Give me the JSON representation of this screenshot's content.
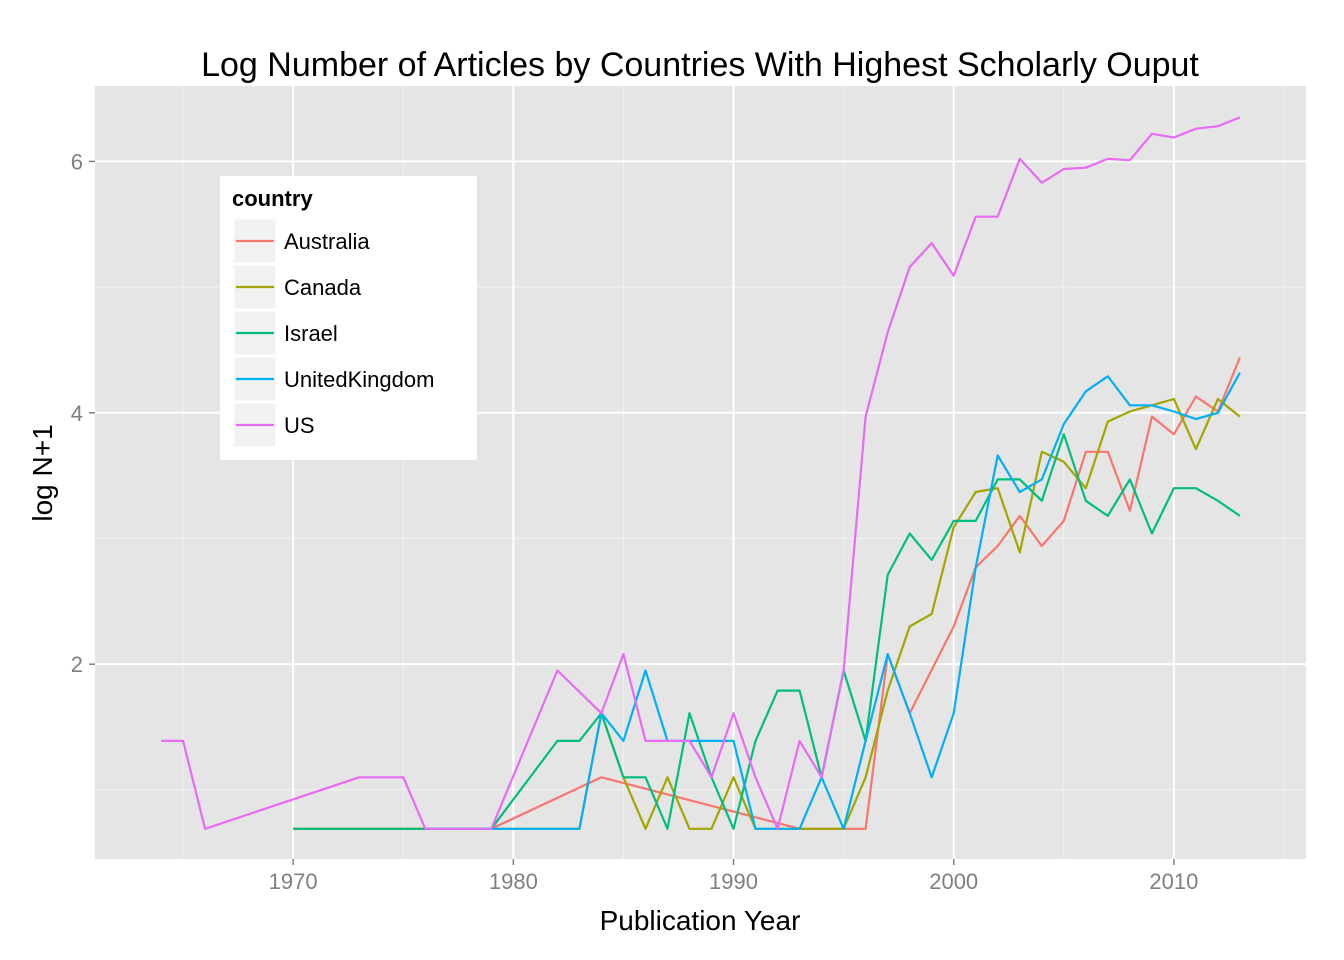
{
  "chart_data": {
    "type": "line",
    "title": "Log Number of Articles by Countries With Highest Scholarly Ouput",
    "xlabel": "Publication Year",
    "ylabel": "log N+1",
    "xlim": [
      1961,
      2016
    ],
    "ylim": [
      0.45,
      6.6
    ],
    "x_ticks": [
      1970,
      1980,
      1990,
      2000,
      2010
    ],
    "y_ticks": [
      2,
      4,
      6
    ],
    "grid": true,
    "legend": {
      "title": "country",
      "position": "top-left inside"
    },
    "series": [
      {
        "name": "Australia",
        "color": "#F8766D",
        "points": [
          [
            1970,
            0.69
          ],
          [
            1979,
            0.69
          ],
          [
            1984,
            1.1
          ],
          [
            1993,
            0.69
          ],
          [
            1996,
            0.69
          ],
          [
            1997,
            2.08
          ],
          [
            1998,
            1.61
          ],
          [
            2000,
            2.3
          ],
          [
            2001,
            2.77
          ],
          [
            2002,
            2.94
          ],
          [
            2003,
            3.18
          ],
          [
            2004,
            2.94
          ],
          [
            2005,
            3.14
          ],
          [
            2006,
            3.69
          ],
          [
            2007,
            3.69
          ],
          [
            2008,
            3.22
          ],
          [
            2009,
            3.97
          ],
          [
            2010,
            3.83
          ],
          [
            2011,
            4.13
          ],
          [
            2012,
            4.01
          ],
          [
            2013,
            4.44
          ]
        ]
      },
      {
        "name": "Canada",
        "color": "#A3A500",
        "points": [
          [
            1970,
            0.69
          ],
          [
            1983,
            0.69
          ],
          [
            1984,
            1.61
          ],
          [
            1985,
            1.1
          ],
          [
            1986,
            0.69
          ],
          [
            1987,
            1.1
          ],
          [
            1988,
            0.69
          ],
          [
            1989,
            0.69
          ],
          [
            1990,
            1.1
          ],
          [
            1991,
            0.69
          ],
          [
            1992,
            0.69
          ],
          [
            1993,
            0.69
          ],
          [
            1995,
            0.69
          ],
          [
            1996,
            1.1
          ],
          [
            1997,
            1.79
          ],
          [
            1998,
            2.3
          ],
          [
            1999,
            2.4
          ],
          [
            2000,
            3.09
          ],
          [
            2001,
            3.37
          ],
          [
            2002,
            3.4
          ],
          [
            2003,
            2.89
          ],
          [
            2004,
            3.69
          ],
          [
            2005,
            3.61
          ],
          [
            2006,
            3.4
          ],
          [
            2007,
            3.93
          ],
          [
            2008,
            4.01
          ],
          [
            2009,
            4.06
          ],
          [
            2010,
            4.11
          ],
          [
            2011,
            3.71
          ],
          [
            2012,
            4.11
          ],
          [
            2013,
            3.97
          ]
        ]
      },
      {
        "name": "Israel",
        "color": "#00BF7D",
        "points": [
          [
            1970,
            0.69
          ],
          [
            1979,
            0.69
          ],
          [
            1982,
            1.39
          ],
          [
            1983,
            1.39
          ],
          [
            1984,
            1.61
          ],
          [
            1985,
            1.1
          ],
          [
            1986,
            1.1
          ],
          [
            1987,
            0.69
          ],
          [
            1988,
            1.61
          ],
          [
            1989,
            1.1
          ],
          [
            1990,
            0.69
          ],
          [
            1991,
            1.39
          ],
          [
            1992,
            1.79
          ],
          [
            1993,
            1.79
          ],
          [
            1994,
            1.1
          ],
          [
            1995,
            1.95
          ],
          [
            1996,
            1.39
          ],
          [
            1997,
            2.71
          ],
          [
            1998,
            3.04
          ],
          [
            1999,
            2.83
          ],
          [
            2000,
            3.14
          ],
          [
            2001,
            3.14
          ],
          [
            2002,
            3.47
          ],
          [
            2003,
            3.47
          ],
          [
            2004,
            3.3
          ],
          [
            2005,
            3.83
          ],
          [
            2006,
            3.3
          ],
          [
            2007,
            3.18
          ],
          [
            2008,
            3.47
          ],
          [
            2009,
            3.04
          ],
          [
            2010,
            3.4
          ],
          [
            2011,
            3.4
          ],
          [
            2012,
            3.3
          ],
          [
            2013,
            3.18
          ]
        ]
      },
      {
        "name": "UnitedKingdom",
        "color": "#00B0F6",
        "points": [
          [
            1976,
            0.69
          ],
          [
            1983,
            0.69
          ],
          [
            1984,
            1.61
          ],
          [
            1985,
            1.39
          ],
          [
            1986,
            1.95
          ],
          [
            1987,
            1.39
          ],
          [
            1988,
            1.39
          ],
          [
            1989,
            1.39
          ],
          [
            1990,
            1.39
          ],
          [
            1991,
            0.69
          ],
          [
            1992,
            0.69
          ],
          [
            1993,
            0.69
          ],
          [
            1994,
            1.1
          ],
          [
            1995,
            0.69
          ],
          [
            1996,
            1.39
          ],
          [
            1997,
            2.08
          ],
          [
            1998,
            1.61
          ],
          [
            1999,
            1.1
          ],
          [
            2000,
            1.61
          ],
          [
            2001,
            2.77
          ],
          [
            2002,
            3.66
          ],
          [
            2003,
            3.37
          ],
          [
            2004,
            3.47
          ],
          [
            2005,
            3.91
          ],
          [
            2006,
            4.17
          ],
          [
            2007,
            4.29
          ],
          [
            2008,
            4.06
          ],
          [
            2009,
            4.06
          ],
          [
            2010,
            4.01
          ],
          [
            2011,
            3.95
          ],
          [
            2012,
            4.0
          ],
          [
            2013,
            4.32
          ]
        ]
      },
      {
        "name": "US",
        "color": "#E76BF3",
        "points": [
          [
            1964,
            1.39
          ],
          [
            1965,
            1.39
          ],
          [
            1966,
            0.69
          ],
          [
            1973,
            1.1
          ],
          [
            1975,
            1.1
          ],
          [
            1976,
            0.69
          ],
          [
            1979,
            0.69
          ],
          [
            1982,
            1.95
          ],
          [
            1984,
            1.61
          ],
          [
            1985,
            2.08
          ],
          [
            1986,
            1.39
          ],
          [
            1988,
            1.39
          ],
          [
            1989,
            1.1
          ],
          [
            1990,
            1.61
          ],
          [
            1991,
            1.1
          ],
          [
            1992,
            0.69
          ],
          [
            1993,
            1.39
          ],
          [
            1994,
            1.1
          ],
          [
            1995,
            1.95
          ],
          [
            1996,
            3.97
          ],
          [
            1997,
            4.64
          ],
          [
            1998,
            5.16
          ],
          [
            1999,
            5.35
          ],
          [
            2000,
            5.09
          ],
          [
            2001,
            5.56
          ],
          [
            2002,
            5.56
          ],
          [
            2003,
            6.02
          ],
          [
            2004,
            5.83
          ],
          [
            2005,
            5.94
          ],
          [
            2006,
            5.95
          ],
          [
            2007,
            6.02
          ],
          [
            2008,
            6.01
          ],
          [
            2009,
            6.22
          ],
          [
            2010,
            6.19
          ],
          [
            2011,
            6.26
          ],
          [
            2012,
            6.28
          ],
          [
            2013,
            6.35
          ]
        ]
      }
    ]
  }
}
